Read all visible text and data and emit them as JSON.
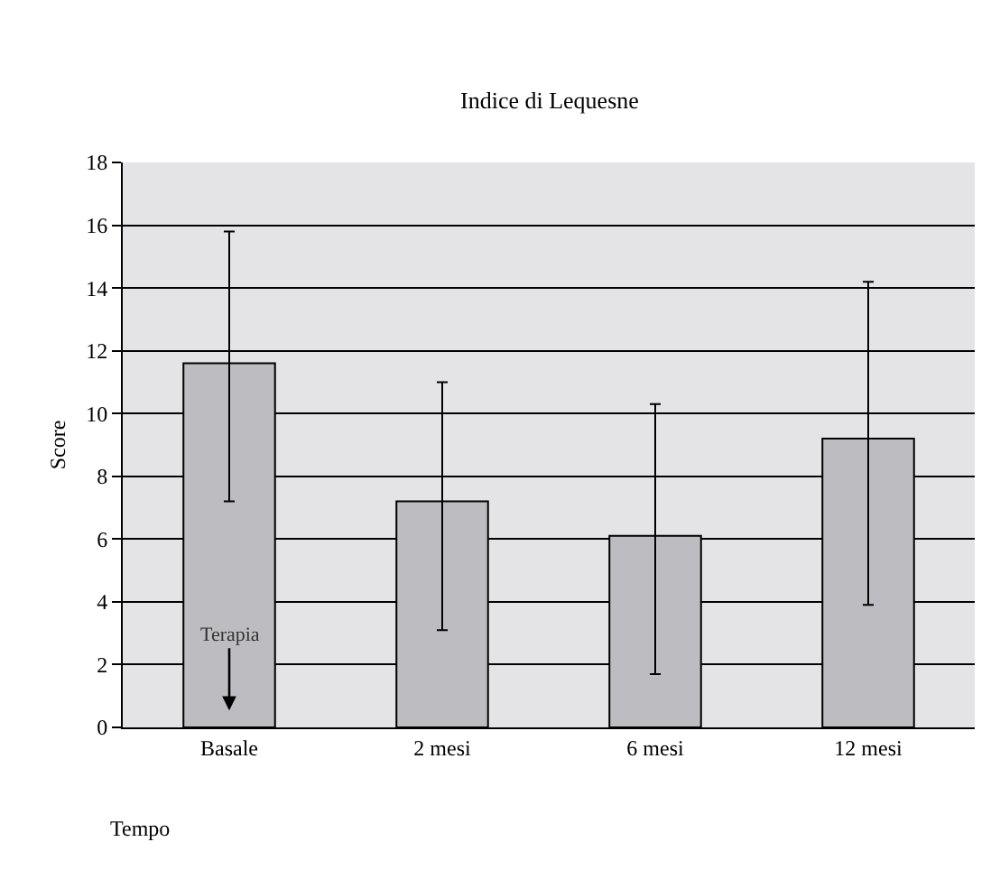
{
  "chart_data": {
    "type": "bar",
    "title": "Indice di Lequesne",
    "xlabel": "Tempo",
    "ylabel": "Score",
    "categories": [
      "Basale",
      "2 mesi",
      "6 mesi",
      "12 mesi"
    ],
    "values": [
      11.6,
      7.2,
      6.1,
      9.2
    ],
    "errors": [
      [
        7.2,
        15.8
      ],
      [
        3.1,
        11.0
      ],
      [
        1.7,
        10.3
      ],
      [
        3.9,
        14.2
      ]
    ],
    "color": "#bdbdc1",
    "ylim": [
      0,
      18
    ],
    "yticks": [
      0,
      2,
      4,
      6,
      8,
      10,
      12,
      14,
      16,
      18
    ],
    "grid": "y",
    "annotations": [
      "Terapia"
    ]
  }
}
